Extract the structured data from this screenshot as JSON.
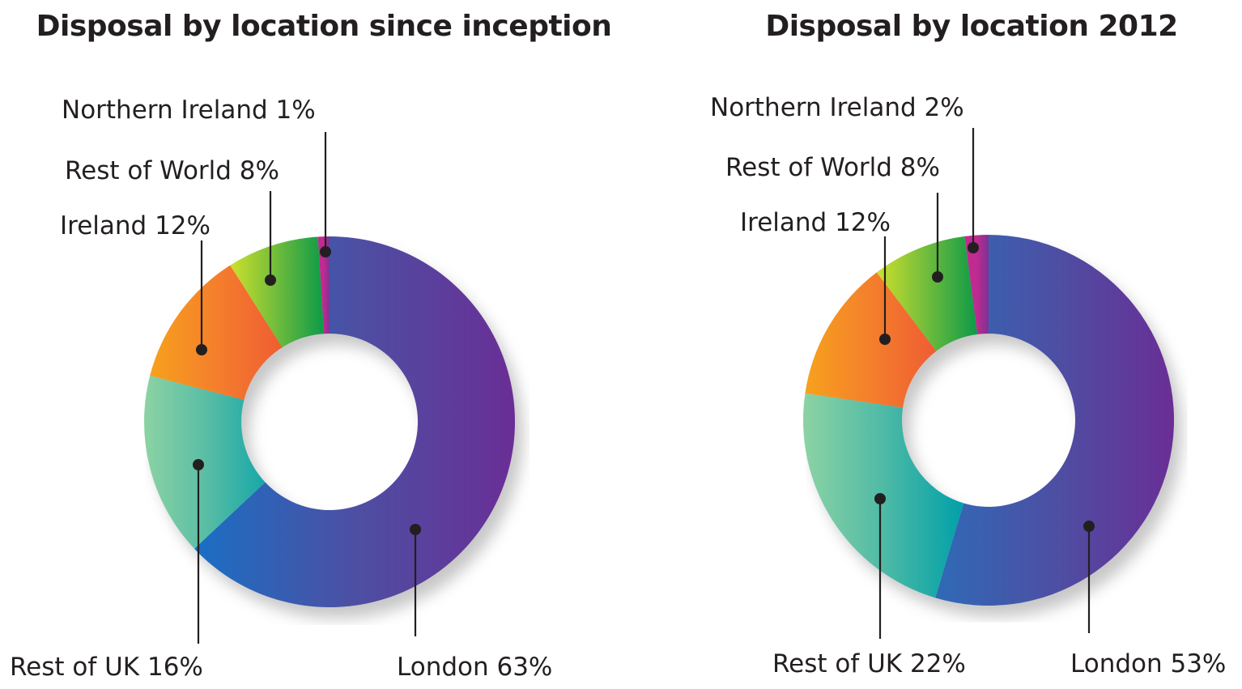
{
  "chart_data": [
    {
      "type": "pie",
      "title": "Disposal by location since inception",
      "slices": [
        {
          "name": "London",
          "value": 63,
          "label": "London 63%",
          "colors": [
            "#1a6fc4",
            "#4d4fa3",
            "#6a2e96"
          ]
        },
        {
          "name": "Rest of UK",
          "value": 16,
          "label": "Rest of UK 16%",
          "colors": [
            "#8cd3a4",
            "#5bbea5",
            "#16a7a8"
          ]
        },
        {
          "name": "Ireland",
          "value": 12,
          "label": "Ireland 12%",
          "colors": [
            "#f7a11d",
            "#f47f2c",
            "#ef5c33"
          ]
        },
        {
          "name": "Rest of World",
          "value": 8,
          "label": "Rest of World 8%",
          "colors": [
            "#cde02c",
            "#6fbc3c",
            "#0c9a48"
          ]
        },
        {
          "name": "Northern Ireland",
          "value": 1,
          "label": "Northern Ireland 1%",
          "colors": [
            "#c02a91",
            "#c02a91",
            "#7d3294"
          ]
        }
      ]
    },
    {
      "type": "pie",
      "title": "Disposal by location 2012",
      "slices": [
        {
          "name": "London",
          "value": 53,
          "label": "London 53%",
          "colors": [
            "#2f6ab6",
            "#4d4fa3",
            "#6a2e96"
          ]
        },
        {
          "name": "Rest of UK",
          "value": 22,
          "label": "Rest of UK 22%",
          "colors": [
            "#8cd3a4",
            "#4fbaa6",
            "#00a0a8"
          ]
        },
        {
          "name": "Ireland",
          "value": 12,
          "label": "Ireland 12%",
          "colors": [
            "#f7a11d",
            "#f47f2c",
            "#ef5c33"
          ]
        },
        {
          "name": "Rest of World",
          "value": 8,
          "label": "Rest of World 8%",
          "colors": [
            "#cde02c",
            "#6fbc3c",
            "#0c9a48"
          ]
        },
        {
          "name": "Northern Ireland",
          "value": 2,
          "label": "Northern Ireland 2%",
          "colors": [
            "#c02a91",
            "#c02a91",
            "#7d3294"
          ]
        }
      ]
    }
  ]
}
